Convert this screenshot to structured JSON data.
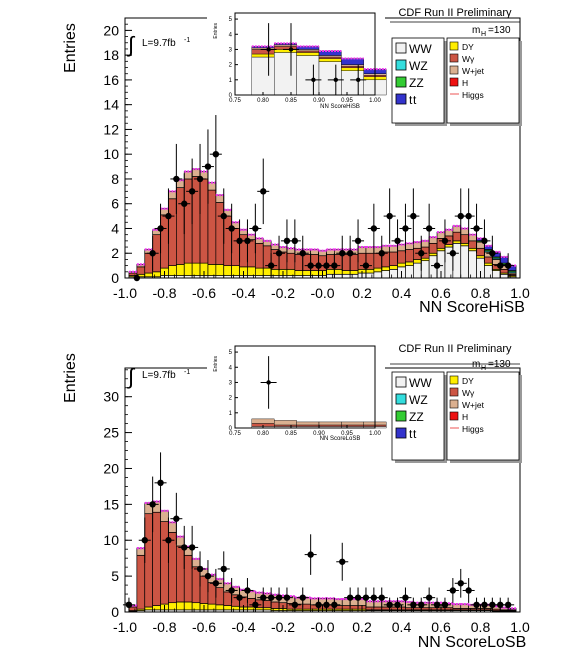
{
  "chart_data": [
    {
      "type": "bar",
      "name": "top-panel",
      "title": "CDF Run II Preliminary",
      "xlabel": "NN ScoreHiSB",
      "ylabel": "Entries",
      "xlim": [
        -1.0,
        1.0
      ],
      "ylim": [
        0,
        21
      ],
      "yticks": [
        0,
        2,
        4,
        6,
        8,
        10,
        12,
        14,
        16,
        18,
        20
      ],
      "xticks": [
        "-1.0",
        "-0.8",
        "-0.6",
        "-0.4",
        "-0.2",
        "-0.0",
        "0.2",
        "0.4",
        "0.6",
        "0.8",
        "1.0"
      ],
      "lumi_label": "L=9.7fb",
      "lumi_exp": "-1",
      "mass_label": "m",
      "mass_sub": "H",
      "mass_value": "=130",
      "legend": {
        "left": [
          {
            "label": "WW",
            "color": "#f2f2f2"
          },
          {
            "label": "WZ",
            "color": "#33dddd"
          },
          {
            "label": "ZZ",
            "color": "#33cc33"
          },
          {
            "label": "t",
            "sub": "t",
            "color": "#3333cc"
          }
        ],
        "right": [
          {
            "label": "DY",
            "color": "#ffee00"
          },
          {
            "label": "Wγ",
            "color": "#cc5544"
          },
          {
            "label": "W+jet",
            "color": "#dbb090"
          },
          {
            "label": "H",
            "color": "#ee1111"
          },
          {
            "label": "Higgs",
            "color": "#ee5555",
            "style": "line"
          }
        ]
      },
      "bin_edges_start": -0.98,
      "bin_width": 0.04,
      "series": [
        {
          "name": "WW",
          "color": "#f2f2f2",
          "values": [
            0.1,
            0.1,
            0.1,
            0.1,
            0.2,
            0.2,
            0.2,
            0.2,
            0.2,
            0.2,
            0.2,
            0.2,
            0.2,
            0.2,
            0.2,
            0.2,
            0.2,
            0.2,
            0.2,
            0.2,
            0.2,
            0.2,
            0.2,
            0.2,
            0.2,
            0.3,
            0.3,
            0.3,
            0.3,
            0.4,
            0.4,
            0.5,
            0.6,
            0.7,
            0.9,
            1.0,
            1.2,
            1.4,
            1.8,
            2.2,
            2.5,
            2.8,
            2.6,
            2.2,
            1.6,
            1.0,
            0.6,
            0.3,
            0.1
          ]
        },
        {
          "name": "DY",
          "color": "#ffee00",
          "values": [
            0.1,
            0.2,
            0.3,
            0.4,
            0.6,
            0.8,
            0.9,
            1.0,
            1.0,
            1.0,
            0.9,
            0.9,
            0.8,
            0.8,
            0.7,
            0.7,
            0.6,
            0.6,
            0.5,
            0.5,
            0.5,
            0.4,
            0.4,
            0.4,
            0.4,
            0.4,
            0.4,
            0.3,
            0.3,
            0.3,
            0.3,
            0.3,
            0.3,
            0.3,
            0.3,
            0.3,
            0.3,
            0.2,
            0.2,
            0.2,
            0.2,
            0.2,
            0.2,
            0.2,
            0.2,
            0.2,
            0.1,
            0.1,
            0.1
          ]
        },
        {
          "name": "Wγ",
          "color": "#cc5544",
          "values": [
            0.2,
            0.6,
            1.6,
            3.0,
            4.3,
            5.4,
            6.2,
            6.8,
            7.0,
            6.8,
            6.0,
            5.0,
            4.0,
            3.0,
            2.6,
            2.2,
            2.0,
            1.8,
            1.6,
            1.4,
            1.3,
            1.3,
            1.3,
            1.3,
            1.2,
            1.2,
            1.2,
            1.3,
            1.3,
            1.3,
            1.3,
            1.2,
            1.2,
            1.1,
            1.0,
            1.0,
            0.9,
            0.9,
            0.8,
            0.8,
            0.7,
            0.7,
            0.7,
            0.6,
            0.6,
            0.5,
            0.4,
            0.3,
            0.1
          ]
        },
        {
          "name": "W+jet",
          "color": "#dbb090",
          "values": [
            0.1,
            0.2,
            0.3,
            0.4,
            0.5,
            0.6,
            0.6,
            0.6,
            0.6,
            0.6,
            0.6,
            0.6,
            0.5,
            0.5,
            0.4,
            0.4,
            0.4,
            0.4,
            0.4,
            0.4,
            0.4,
            0.4,
            0.4,
            0.4,
            0.4,
            0.4,
            0.4,
            0.4,
            0.4,
            0.5,
            0.5,
            0.5,
            0.5,
            0.5,
            0.5,
            0.5,
            0.5,
            0.5,
            0.5,
            0.5,
            0.5,
            0.5,
            0.5,
            0.5,
            0.5,
            0.4,
            0.4,
            0.3,
            0.1
          ]
        },
        {
          "name": "WZ",
          "color": "#33dddd",
          "values": [
            0,
            0,
            0,
            0,
            0,
            0,
            0,
            0,
            0,
            0,
            0,
            0,
            0,
            0,
            0,
            0,
            0,
            0,
            0,
            0,
            0,
            0,
            0,
            0,
            0,
            0,
            0,
            0,
            0,
            0,
            0,
            0,
            0,
            0,
            0,
            0,
            0,
            0,
            0,
            0,
            0,
            0,
            0,
            0,
            0,
            0.1,
            0.1,
            0.1,
            0.1
          ]
        },
        {
          "name": "ZZ",
          "color": "#33cc33",
          "values": [
            0,
            0,
            0,
            0,
            0,
            0,
            0,
            0,
            0,
            0,
            0,
            0,
            0,
            0,
            0,
            0,
            0,
            0,
            0,
            0,
            0,
            0,
            0,
            0,
            0,
            0,
            0,
            0,
            0,
            0,
            0,
            0,
            0,
            0,
            0,
            0,
            0,
            0,
            0,
            0,
            0,
            0,
            0,
            0,
            0.1,
            0.1,
            0.1,
            0.1,
            0.1
          ]
        },
        {
          "name": "tt",
          "color": "#3333cc",
          "values": [
            0,
            0,
            0,
            0,
            0,
            0,
            0,
            0,
            0,
            0,
            0,
            0,
            0,
            0,
            0,
            0,
            0,
            0,
            0,
            0,
            0,
            0,
            0,
            0,
            0,
            0,
            0,
            0,
            0,
            0,
            0,
            0,
            0,
            0,
            0,
            0,
            0,
            0,
            0,
            0,
            0,
            0,
            0,
            0,
            0.2,
            0.3,
            0.4,
            0.5,
            0.4
          ]
        }
      ],
      "data_points": {
        "x": [
          -0.94,
          -0.86,
          -0.82,
          -0.78,
          -0.74,
          -0.7,
          -0.66,
          -0.62,
          -0.58,
          -0.54,
          -0.5,
          -0.46,
          -0.42,
          -0.38,
          -0.34,
          -0.3,
          -0.26,
          -0.22,
          -0.18,
          -0.14,
          -0.1,
          -0.06,
          -0.02,
          0.02,
          0.06,
          0.1,
          0.14,
          0.18,
          0.22,
          0.26,
          0.3,
          0.34,
          0.38,
          0.42,
          0.46,
          0.5,
          0.54,
          0.58,
          0.62,
          0.66,
          0.7,
          0.74,
          0.78,
          0.82,
          0.86,
          0.9,
          0.94
        ],
        "y": [
          0,
          2,
          4,
          5,
          8,
          6,
          7,
          8,
          9,
          10,
          5,
          4,
          3,
          3,
          4,
          7,
          1,
          2,
          3,
          3,
          2,
          1,
          1,
          1,
          1,
          2,
          2,
          3,
          1,
          4,
          2,
          5,
          3,
          4,
          5,
          2,
          4,
          1,
          3,
          2,
          5,
          5,
          4,
          3,
          2,
          1,
          1
        ]
      }
    },
    {
      "type": "bar",
      "name": "top-inset",
      "xlabel": "NN ScoreHiSB",
      "ylabel": "Entries",
      "xlim": [
        0.75,
        1.0
      ],
      "ylim": [
        0,
        5.4
      ],
      "yticks": [
        0,
        1,
        2,
        3,
        4,
        5
      ],
      "xticks": [
        "0.75",
        "0.80",
        "0.85",
        "0.90",
        "0.95",
        "1.00"
      ],
      "bin_edges_start": 0.78,
      "bin_width": 0.04,
      "series": [
        {
          "name": "WW",
          "color": "#f2f2f2",
          "values": [
            2.5,
            2.8,
            2.6,
            2.2,
            1.6,
            1.0
          ]
        },
        {
          "name": "DY",
          "color": "#ffee00",
          "values": [
            0.2,
            0.2,
            0.2,
            0.2,
            0.2,
            0.2
          ]
        },
        {
          "name": "Wγ",
          "color": "#cc5544",
          "values": [
            0.3,
            0.2,
            0.1,
            0.1,
            0.1,
            0.1
          ]
        },
        {
          "name": "W+jet",
          "color": "#dbb090",
          "values": [
            0.1,
            0.1,
            0.1,
            0.1,
            0.1,
            0.1
          ]
        },
        {
          "name": "tt",
          "color": "#3333cc",
          "values": [
            0.1,
            0.1,
            0.2,
            0.3,
            0.4,
            0.3
          ]
        }
      ],
      "data_points": {
        "x": [
          0.81,
          0.85,
          0.89,
          0.93,
          0.97
        ],
        "y": [
          3,
          3,
          1,
          1,
          1
        ]
      }
    },
    {
      "type": "bar",
      "name": "bottom-panel",
      "title": "CDF Run II Preliminary",
      "xlabel": "NN ScoreLoSB",
      "ylabel": "Entries",
      "xlim": [
        -1.0,
        1.0
      ],
      "ylim": [
        0,
        34
      ],
      "yticks": [
        0,
        5,
        10,
        15,
        20,
        25,
        30
      ],
      "xticks": [
        "-1.0",
        "-0.8",
        "-0.6",
        "-0.4",
        "-0.2",
        "-0.0",
        "0.2",
        "0.4",
        "0.6",
        "0.8",
        "1.0"
      ],
      "lumi_label": "L=9.7fb",
      "lumi_exp": "-1",
      "mass_label": "m",
      "mass_sub": "H",
      "mass_value": "=130",
      "legend": {
        "left": [
          {
            "label": "WW",
            "color": "#f2f2f2"
          },
          {
            "label": "WZ",
            "color": "#33dddd"
          },
          {
            "label": "ZZ",
            "color": "#33cc33"
          },
          {
            "label": "t",
            "sub": "t",
            "color": "#3333cc"
          }
        ],
        "right": [
          {
            "label": "DY",
            "color": "#ffee00"
          },
          {
            "label": "Wγ",
            "color": "#cc5544"
          },
          {
            "label": "W+jet",
            "color": "#dbb090"
          },
          {
            "label": "H",
            "color": "#ee1111"
          },
          {
            "label": "Higgs",
            "color": "#ee5555",
            "style": "line"
          }
        ]
      },
      "bin_edges_start": -0.98,
      "bin_width": 0.04,
      "series": [
        {
          "name": "WW",
          "color": "#f2f2f2",
          "values": [
            0.1,
            0.2,
            0.3,
            0.3,
            0.3,
            0.3,
            0.3,
            0.3,
            0.3,
            0.3,
            0.3,
            0.3,
            0.3,
            0.3,
            0.3,
            0.3,
            0.3,
            0.3,
            0.2,
            0.2,
            0.2,
            0.2,
            0.2,
            0.2,
            0.2,
            0.2,
            0.2,
            0.2,
            0.2,
            0.2,
            0.2,
            0.2,
            0.2,
            0.2,
            0.2,
            0.2,
            0.2,
            0.2,
            0.2,
            0.2,
            0.2,
            0.2,
            0.2,
            0.2,
            0.2,
            0.2,
            0.1,
            0.1,
            0.1
          ]
        },
        {
          "name": "DY",
          "color": "#ffee00",
          "values": [
            0.1,
            0.2,
            0.4,
            0.6,
            0.8,
            1.0,
            1.1,
            1.1,
            1.0,
            0.9,
            0.8,
            0.7,
            0.6,
            0.5,
            0.4,
            0.4,
            0.3,
            0.3,
            0.3,
            0.3,
            0.2,
            0.2,
            0.2,
            0.2,
            0.2,
            0.2,
            0.2,
            0.2,
            0.2,
            0.2,
            0.1,
            0.1,
            0.1,
            0.1,
            0.1,
            0.1,
            0.1,
            0.1,
            0.1,
            0.1,
            0.1,
            0.1,
            0.1,
            0.1,
            0.1,
            0.1,
            0.1,
            0.1,
            0.1
          ]
        },
        {
          "name": "Wγ",
          "color": "#cc5544",
          "values": [
            0.5,
            7.5,
            13.0,
            13.0,
            11.5,
            9.8,
            7.8,
            6.5,
            5.0,
            3.8,
            3.0,
            2.4,
            1.9,
            1.6,
            1.4,
            1.2,
            1.1,
            1.0,
            0.9,
            0.8,
            0.8,
            0.7,
            0.7,
            0.6,
            0.6,
            0.6,
            0.5,
            0.5,
            0.5,
            0.5,
            0.4,
            0.4,
            0.4,
            0.4,
            0.4,
            0.3,
            0.3,
            0.3,
            0.3,
            0.3,
            0.3,
            0.2,
            0.2,
            0.2,
            0.2,
            0.2,
            0.2,
            0.1,
            0.1
          ]
        },
        {
          "name": "W+jet",
          "color": "#dbb090",
          "values": [
            0.2,
            1.0,
            1.5,
            1.5,
            1.5,
            1.4,
            1.3,
            1.2,
            1.1,
            1.0,
            1.1,
            1.2,
            1.2,
            1.1,
            1.0,
            1.0,
            1.0,
            1.0,
            1.0,
            1.0,
            1.0,
            0.9,
            0.9,
            0.9,
            0.9,
            0.9,
            0.9,
            0.9,
            0.9,
            0.9,
            0.8,
            0.8,
            0.8,
            0.8,
            0.8,
            0.8,
            0.7,
            0.7,
            0.7,
            0.7,
            0.6,
            0.6,
            0.6,
            0.5,
            0.5,
            0.5,
            0.4,
            0.3,
            0.2
          ]
        }
      ],
      "data_points": {
        "x": [
          -0.98,
          -0.9,
          -0.86,
          -0.82,
          -0.78,
          -0.74,
          -0.7,
          -0.66,
          -0.62,
          -0.58,
          -0.54,
          -0.5,
          -0.46,
          -0.42,
          -0.38,
          -0.34,
          -0.3,
          -0.26,
          -0.22,
          -0.18,
          -0.14,
          -0.1,
          -0.06,
          -0.02,
          0.02,
          0.06,
          0.1,
          0.14,
          0.18,
          0.22,
          0.26,
          0.3,
          0.34,
          0.38,
          0.42,
          0.46,
          0.5,
          0.54,
          0.58,
          0.62,
          0.66,
          0.7,
          0.74,
          0.78,
          0.82,
          0.86,
          0.9,
          0.94
        ],
        "y": [
          1,
          10,
          15,
          18,
          10,
          13,
          9,
          9,
          6,
          5,
          4,
          6,
          3,
          2,
          3,
          1,
          2,
          2,
          2,
          2,
          1,
          2,
          8,
          1,
          1,
          1,
          7,
          2,
          2,
          2,
          2,
          2,
          1,
          1,
          2,
          1,
          1,
          2,
          1,
          1,
          3,
          4,
          3,
          1,
          1,
          1,
          1,
          1
        ]
      }
    },
    {
      "type": "bar",
      "name": "bottom-inset",
      "xlabel": "NN ScoreLoSB",
      "ylabel": "Entries",
      "xlim": [
        0.75,
        1.0
      ],
      "ylim": [
        0,
        5.4
      ],
      "yticks": [
        0,
        1,
        2,
        3,
        4,
        5
      ],
      "xticks": [
        "0.75",
        "0.80",
        "0.85",
        "0.90",
        "0.95",
        "1.00"
      ],
      "bin_edges_start": 0.78,
      "bin_width": 0.04,
      "series": [
        {
          "name": "WW",
          "color": "#f2f2f2",
          "values": [
            0.1,
            0.1,
            0.1,
            0.1,
            0.1,
            0.1
          ]
        },
        {
          "name": "Wγ",
          "color": "#cc5544",
          "values": [
            0.2,
            0.1,
            0.1,
            0.1,
            0.1,
            0.1
          ]
        },
        {
          "name": "W+jet",
          "color": "#dbb090",
          "values": [
            0.3,
            0.3,
            0.2,
            0.2,
            0.2,
            0.2
          ]
        }
      ],
      "data_points": {
        "x": [
          0.81
        ],
        "y": [
          3
        ]
      }
    }
  ]
}
